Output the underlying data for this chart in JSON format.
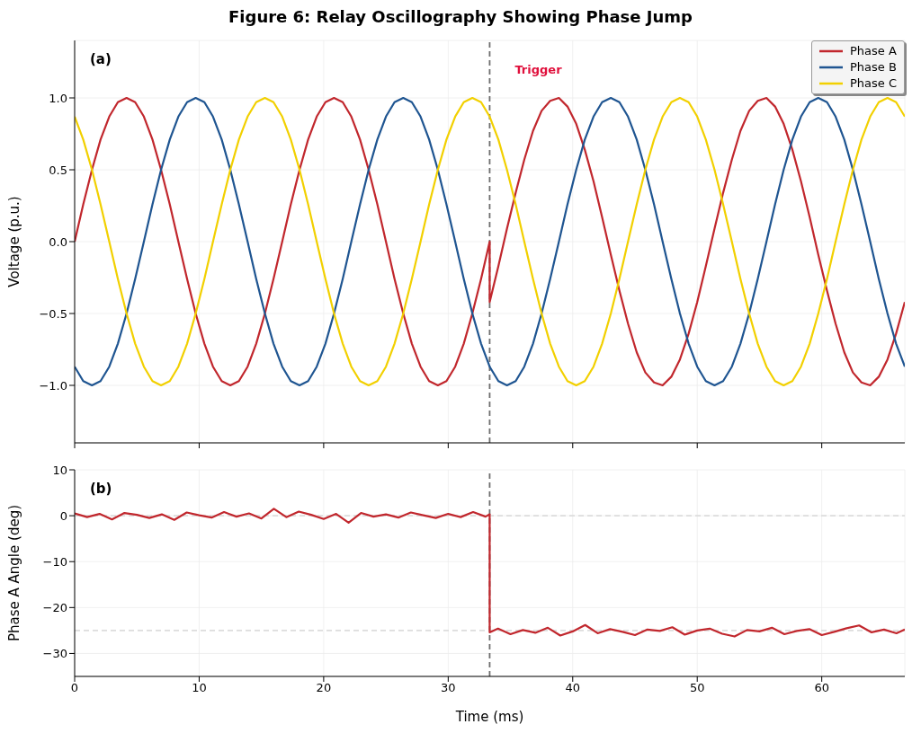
{
  "chart_data": [
    {
      "type": "line",
      "title": "Figure 6: Relay Oscillography Showing Phase Jump",
      "ylabel": "Voltage (p.u.)",
      "annotations": [
        "(a)"
      ],
      "x": [
        0,
        0.69,
        1.39,
        2.08,
        2.78,
        3.47,
        4.17,
        4.86,
        5.56,
        6.25,
        6.94,
        7.64,
        8.33,
        9.03,
        9.72,
        10.42,
        11.11,
        11.81,
        12.5,
        13.19,
        13.89,
        14.58,
        15.28,
        15.97,
        16.67,
        17.36,
        18.06,
        18.75,
        19.44,
        20.14,
        20.83,
        21.53,
        22.22,
        22.92,
        23.61,
        24.31,
        25,
        25.69,
        26.39,
        27.08,
        27.78,
        28.47,
        29.17,
        29.86,
        30.56,
        31.25,
        31.94,
        32.64,
        33.33,
        34.03,
        34.72,
        35.42,
        36.11,
        36.81,
        37.5,
        38.19,
        38.89,
        39.58,
        40.28,
        40.97,
        41.67,
        42.36,
        43.06,
        43.75,
        44.44,
        45.14,
        45.83,
        46.53,
        47.22,
        47.92,
        48.61,
        49.31,
        50,
        50.69,
        51.39,
        52.08,
        52.78,
        53.47,
        54.17,
        54.86,
        55.56,
        56.25,
        56.94,
        57.64,
        58.33,
        59.03,
        59.72,
        60.42,
        61.11,
        61.81,
        62.5,
        63.19,
        63.89,
        64.58,
        65.28,
        65.97,
        66.67
      ],
      "series": [
        {
          "name": "Phase A",
          "color": "#c1272d",
          "x": [
            0,
            0.69,
            1.39,
            2.08,
            2.78,
            3.47,
            4.17,
            4.86,
            5.56,
            6.25,
            6.94,
            7.64,
            8.33,
            9.03,
            9.72,
            10.42,
            11.11,
            11.81,
            12.5,
            13.19,
            13.89,
            14.58,
            15.28,
            15.97,
            16.67,
            17.36,
            18.06,
            18.75,
            19.44,
            20.14,
            20.83,
            21.53,
            22.22,
            22.92,
            23.61,
            24.31,
            25,
            25.69,
            26.39,
            27.08,
            27.78,
            28.47,
            29.17,
            29.86,
            30.56,
            31.25,
            31.94,
            32.64,
            33.33,
            33.33,
            34.03,
            34.72,
            35.42,
            36.11,
            36.81,
            37.5,
            38.19,
            38.89,
            39.58,
            40.28,
            40.97,
            41.67,
            42.36,
            43.06,
            43.75,
            44.44,
            45.14,
            45.83,
            46.53,
            47.22,
            47.92,
            48.61,
            49.31,
            50,
            50.69,
            51.39,
            52.08,
            52.78,
            53.47,
            54.17,
            54.86,
            55.56,
            56.25,
            56.94,
            57.64,
            58.33,
            59.03,
            59.72,
            60.42,
            61.11,
            61.81,
            62.5,
            63.19,
            63.89,
            64.58,
            65.28,
            65.97,
            66.67
          ],
          "values": [
            0,
            0.26,
            0.5,
            0.71,
            0.87,
            0.97,
            1,
            0.97,
            0.87,
            0.71,
            0.5,
            0.26,
            0,
            -0.26,
            -0.5,
            -0.71,
            -0.87,
            -0.97,
            -1,
            -0.97,
            -0.87,
            -0.71,
            -0.5,
            -0.26,
            0,
            0.26,
            0.5,
            0.71,
            0.87,
            0.97,
            1,
            0.97,
            0.87,
            0.71,
            0.5,
            0.26,
            0,
            -0.26,
            -0.5,
            -0.71,
            -0.87,
            -0.97,
            -1,
            -0.97,
            -0.87,
            -0.71,
            -0.5,
            -0.26,
            0,
            -0.42,
            -0.17,
            0.09,
            0.34,
            0.57,
            0.77,
            0.91,
            0.98,
            1,
            0.94,
            0.82,
            0.64,
            0.42,
            0.17,
            -0.09,
            -0.34,
            -0.57,
            -0.77,
            -0.91,
            -0.98,
            -1,
            -0.94,
            -0.82,
            -0.64,
            -0.42,
            -0.17,
            0.09,
            0.34,
            0.57,
            0.77,
            0.91,
            0.98,
            1,
            0.94,
            0.82,
            0.64,
            0.42,
            0.17,
            -0.09,
            -0.34,
            -0.57,
            -0.77,
            -0.91,
            -0.98,
            -1,
            -0.94,
            -0.82,
            -0.64,
            -0.42
          ]
        },
        {
          "name": "Phase B",
          "color": "#1f5591",
          "values": [
            -0.87,
            -0.97,
            -1,
            -0.97,
            -0.87,
            -0.71,
            -0.5,
            -0.26,
            0,
            0.26,
            0.5,
            0.71,
            0.87,
            0.97,
            1,
            0.97,
            0.87,
            0.71,
            0.5,
            0.26,
            0,
            -0.26,
            -0.5,
            -0.71,
            -0.87,
            -0.97,
            -1,
            -0.97,
            -0.87,
            -0.71,
            -0.5,
            -0.26,
            0,
            0.26,
            0.5,
            0.71,
            0.87,
            0.97,
            1,
            0.97,
            0.87,
            0.71,
            0.5,
            0.26,
            0,
            -0.26,
            -0.5,
            -0.71,
            -0.87,
            -0.97,
            -1,
            -0.97,
            -0.87,
            -0.71,
            -0.5,
            -0.26,
            0,
            0.26,
            0.5,
            0.71,
            0.87,
            0.97,
            1,
            0.97,
            0.87,
            0.71,
            0.5,
            0.26,
            0,
            -0.26,
            -0.5,
            -0.71,
            -0.87,
            -0.97,
            -1,
            -0.97,
            -0.87,
            -0.71,
            -0.5,
            -0.26,
            0,
            0.26,
            0.5,
            0.71,
            0.87,
            0.97,
            1,
            0.97,
            0.87,
            0.71,
            0.5,
            0.26,
            0,
            -0.26,
            -0.5,
            -0.71,
            -0.87
          ]
        },
        {
          "name": "Phase C",
          "color": "#f2d000",
          "values": [
            0.87,
            0.71,
            0.5,
            0.26,
            0,
            -0.26,
            -0.5,
            -0.71,
            -0.87,
            -0.97,
            -1,
            -0.97,
            -0.87,
            -0.71,
            -0.5,
            -0.26,
            0,
            0.26,
            0.5,
            0.71,
            0.87,
            0.97,
            1,
            0.97,
            0.87,
            0.71,
            0.5,
            0.26,
            0,
            -0.26,
            -0.5,
            -0.71,
            -0.87,
            -0.97,
            -1,
            -0.97,
            -0.87,
            -0.71,
            -0.5,
            -0.26,
            0,
            0.26,
            0.5,
            0.71,
            0.87,
            0.97,
            1,
            0.97,
            0.87,
            0.71,
            0.5,
            0.26,
            0,
            -0.26,
            -0.5,
            -0.71,
            -0.87,
            -0.97,
            -1,
            -0.97,
            -0.87,
            -0.71,
            -0.5,
            -0.26,
            0,
            0.26,
            0.5,
            0.71,
            0.87,
            0.97,
            1,
            0.97,
            0.87,
            0.71,
            0.5,
            0.26,
            0,
            -0.26,
            -0.5,
            -0.71,
            -0.87,
            -0.97,
            -1,
            -0.97,
            -0.87,
            -0.71,
            -0.5,
            -0.26,
            0,
            0.26,
            0.5,
            0.71,
            0.87,
            0.97,
            1,
            0.97,
            0.87
          ]
        }
      ],
      "xlim": [
        0,
        66.67
      ],
      "xticks": [
        0,
        10,
        20,
        30,
        40,
        50,
        60
      ],
      "ylim": [
        -1.4,
        1.4
      ],
      "yticks": [
        {
          "value": -1,
          "label": "−1.0"
        },
        {
          "value": -0.5,
          "label": "−0.5"
        },
        {
          "value": 0,
          "label": "0.0"
        },
        {
          "value": 0.5,
          "label": "0.5"
        },
        {
          "value": 1,
          "label": "1.0"
        }
      ],
      "ref_lines": [
        {
          "axis": "x",
          "value": 33.33,
          "label": "Trigger",
          "color": "#6e6e6e",
          "line_style": "dashed"
        }
      ],
      "tick_labels": "y",
      "grid": true,
      "legend": "top right",
      "marker": "none",
      "line_style": "solid"
    },
    {
      "type": "line",
      "xlabel": "Time (ms)",
      "ylabel": "Phase A Angle (deg)",
      "annotations": [
        "(b)"
      ],
      "x": [
        0,
        1,
        2,
        3,
        4,
        5,
        6,
        7,
        8,
        9,
        10,
        11,
        12,
        13,
        14,
        15,
        16,
        17,
        18,
        19,
        20,
        21,
        22,
        23,
        24,
        25,
        26,
        27,
        28,
        29,
        30,
        31,
        32,
        33,
        33.33,
        33.33,
        34,
        35,
        36,
        37,
        38,
        39,
        40,
        41,
        42,
        43,
        44,
        45,
        46,
        47,
        48,
        49,
        50,
        51,
        52,
        53,
        54,
        55,
        56,
        57,
        58,
        59,
        60,
        61,
        62,
        63,
        64,
        65,
        66,
        66.67
      ],
      "series": [
        {
          "color": "#c1272d",
          "values": [
            0.5,
            -0.3,
            0.4,
            -0.8,
            0.6,
            0.2,
            -0.5,
            0.3,
            -0.9,
            0.7,
            0.1,
            -0.4,
            0.8,
            -0.2,
            0.5,
            -0.6,
            1.5,
            -0.3,
            0.9,
            0.2,
            -0.7,
            0.4,
            -1.5,
            0.6,
            -0.2,
            0.3,
            -0.4,
            0.7,
            0.1,
            -0.5,
            0.4,
            -0.3,
            0.8,
            -0.2,
            0.3,
            -25.4,
            -24.6,
            -25.8,
            -24.9,
            -25.5,
            -24.4,
            -26.1,
            -25.2,
            -23.8,
            -25.6,
            -24.7,
            -25.3,
            -26,
            -24.8,
            -25.1,
            -24.3,
            -25.9,
            -25,
            -24.6,
            -25.7,
            -26.3,
            -24.9,
            -25.2,
            -24.4,
            -25.8,
            -25.1,
            -24.7,
            -26,
            -25.3,
            -24.5,
            -23.9,
            -25.4,
            -24.8,
            -25.6,
            -24.8
          ]
        }
      ],
      "xlim": [
        0,
        66.67
      ],
      "xticks": [
        0,
        10,
        20,
        30,
        40,
        50,
        60
      ],
      "ylim": [
        -35,
        10
      ],
      "yticks": [
        {
          "value": -30,
          "label": "−30"
        },
        {
          "value": -20,
          "label": "−20"
        },
        {
          "value": -10,
          "label": "−10"
        },
        {
          "value": 0,
          "label": "0"
        },
        {
          "value": 10,
          "label": "10"
        }
      ],
      "ref_lines": [
        {
          "axis": "x",
          "value": 33.33,
          "color": "#6e6e6e",
          "line_style": "dashed"
        },
        {
          "axis": "y",
          "value": 0,
          "color": "#dddddd",
          "line_style": "dashed"
        },
        {
          "axis": "y",
          "value": -25,
          "color": "#dddddd",
          "line_style": "dashed"
        }
      ],
      "grid": true,
      "legend": false,
      "marker": "none",
      "line_style": "solid"
    }
  ]
}
